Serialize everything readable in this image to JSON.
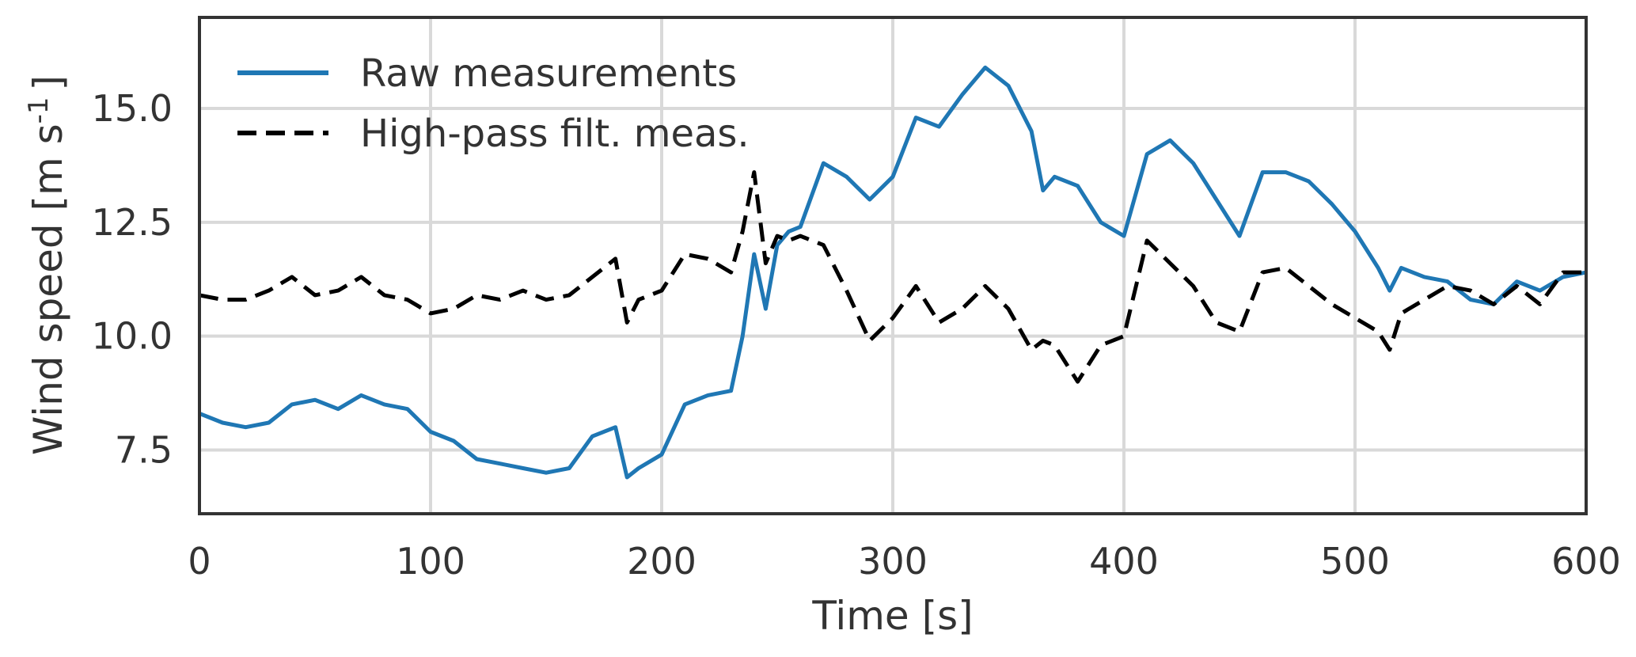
{
  "chart_data": {
    "type": "line",
    "xlabel": "Time [s]",
    "ylabel": {
      "main": "Wind speed [m s",
      "superscript": "-1",
      "closing": "]"
    },
    "xlim": [
      0,
      600
    ],
    "ylim": [
      6.1,
      17.0
    ],
    "xticks": [
      0,
      100,
      200,
      300,
      400,
      500,
      600
    ],
    "yticks": [
      7.5,
      10.0,
      12.5,
      15.0
    ],
    "ytick_labels": [
      "7.5",
      "10.0",
      "12.5",
      "15.0"
    ],
    "grid": true,
    "legend_position": "top-left",
    "series": [
      {
        "name": "Raw measurements",
        "color": "#1f77b4",
        "style": "solid",
        "x": [
          0,
          10,
          20,
          30,
          40,
          50,
          60,
          70,
          80,
          90,
          100,
          110,
          120,
          130,
          140,
          150,
          160,
          170,
          180,
          185,
          190,
          200,
          210,
          220,
          230,
          235,
          240,
          245,
          250,
          255,
          260,
          270,
          280,
          290,
          300,
          310,
          320,
          330,
          340,
          350,
          360,
          365,
          370,
          380,
          390,
          400,
          410,
          420,
          430,
          440,
          450,
          460,
          470,
          480,
          490,
          500,
          510,
          515,
          520,
          530,
          540,
          550,
          560,
          570,
          580,
          590,
          600
        ],
        "y": [
          8.3,
          8.1,
          8.0,
          8.1,
          8.5,
          8.6,
          8.4,
          8.7,
          8.5,
          8.4,
          7.9,
          7.7,
          7.3,
          7.2,
          7.1,
          7.0,
          7.1,
          7.8,
          8.0,
          6.9,
          7.1,
          7.4,
          8.5,
          8.7,
          8.8,
          10.0,
          11.8,
          10.6,
          12.0,
          12.3,
          12.4,
          13.8,
          13.5,
          13.0,
          13.5,
          14.8,
          14.6,
          15.3,
          15.9,
          15.5,
          14.5,
          13.2,
          13.5,
          13.3,
          12.5,
          12.2,
          14.0,
          14.3,
          13.8,
          13.0,
          12.2,
          13.6,
          13.6,
          13.4,
          12.9,
          12.3,
          11.5,
          11.0,
          11.5,
          11.3,
          11.2,
          10.8,
          10.7,
          11.2,
          11.0,
          11.3,
          11.4
        ]
      },
      {
        "name": "High-pass filt. meas.",
        "color": "#000000",
        "style": "dashed",
        "x": [
          0,
          10,
          20,
          30,
          40,
          50,
          60,
          70,
          80,
          90,
          100,
          110,
          120,
          130,
          140,
          150,
          160,
          170,
          180,
          185,
          190,
          200,
          210,
          220,
          230,
          235,
          240,
          245,
          250,
          255,
          260,
          270,
          280,
          290,
          300,
          310,
          320,
          330,
          340,
          350,
          360,
          365,
          370,
          380,
          390,
          400,
          410,
          420,
          430,
          440,
          450,
          460,
          470,
          480,
          490,
          500,
          510,
          515,
          520,
          530,
          540,
          550,
          560,
          570,
          580,
          590,
          600
        ],
        "y": [
          10.9,
          10.8,
          10.8,
          11.0,
          11.3,
          10.9,
          11.0,
          11.3,
          10.9,
          10.8,
          10.5,
          10.6,
          10.9,
          10.8,
          11.0,
          10.8,
          10.9,
          11.3,
          11.7,
          10.3,
          10.8,
          11.0,
          11.8,
          11.7,
          11.4,
          12.3,
          13.6,
          11.6,
          12.2,
          12.1,
          12.2,
          12.0,
          11.0,
          9.9,
          10.4,
          11.1,
          10.3,
          10.6,
          11.1,
          10.6,
          9.7,
          9.9,
          9.8,
          9.0,
          9.8,
          10.0,
          12.1,
          11.6,
          11.1,
          10.3,
          10.1,
          11.4,
          11.5,
          11.1,
          10.7,
          10.4,
          10.1,
          9.7,
          10.5,
          10.8,
          11.1,
          11.0,
          10.7,
          11.1,
          10.7,
          11.4,
          11.4
        ]
      }
    ]
  }
}
